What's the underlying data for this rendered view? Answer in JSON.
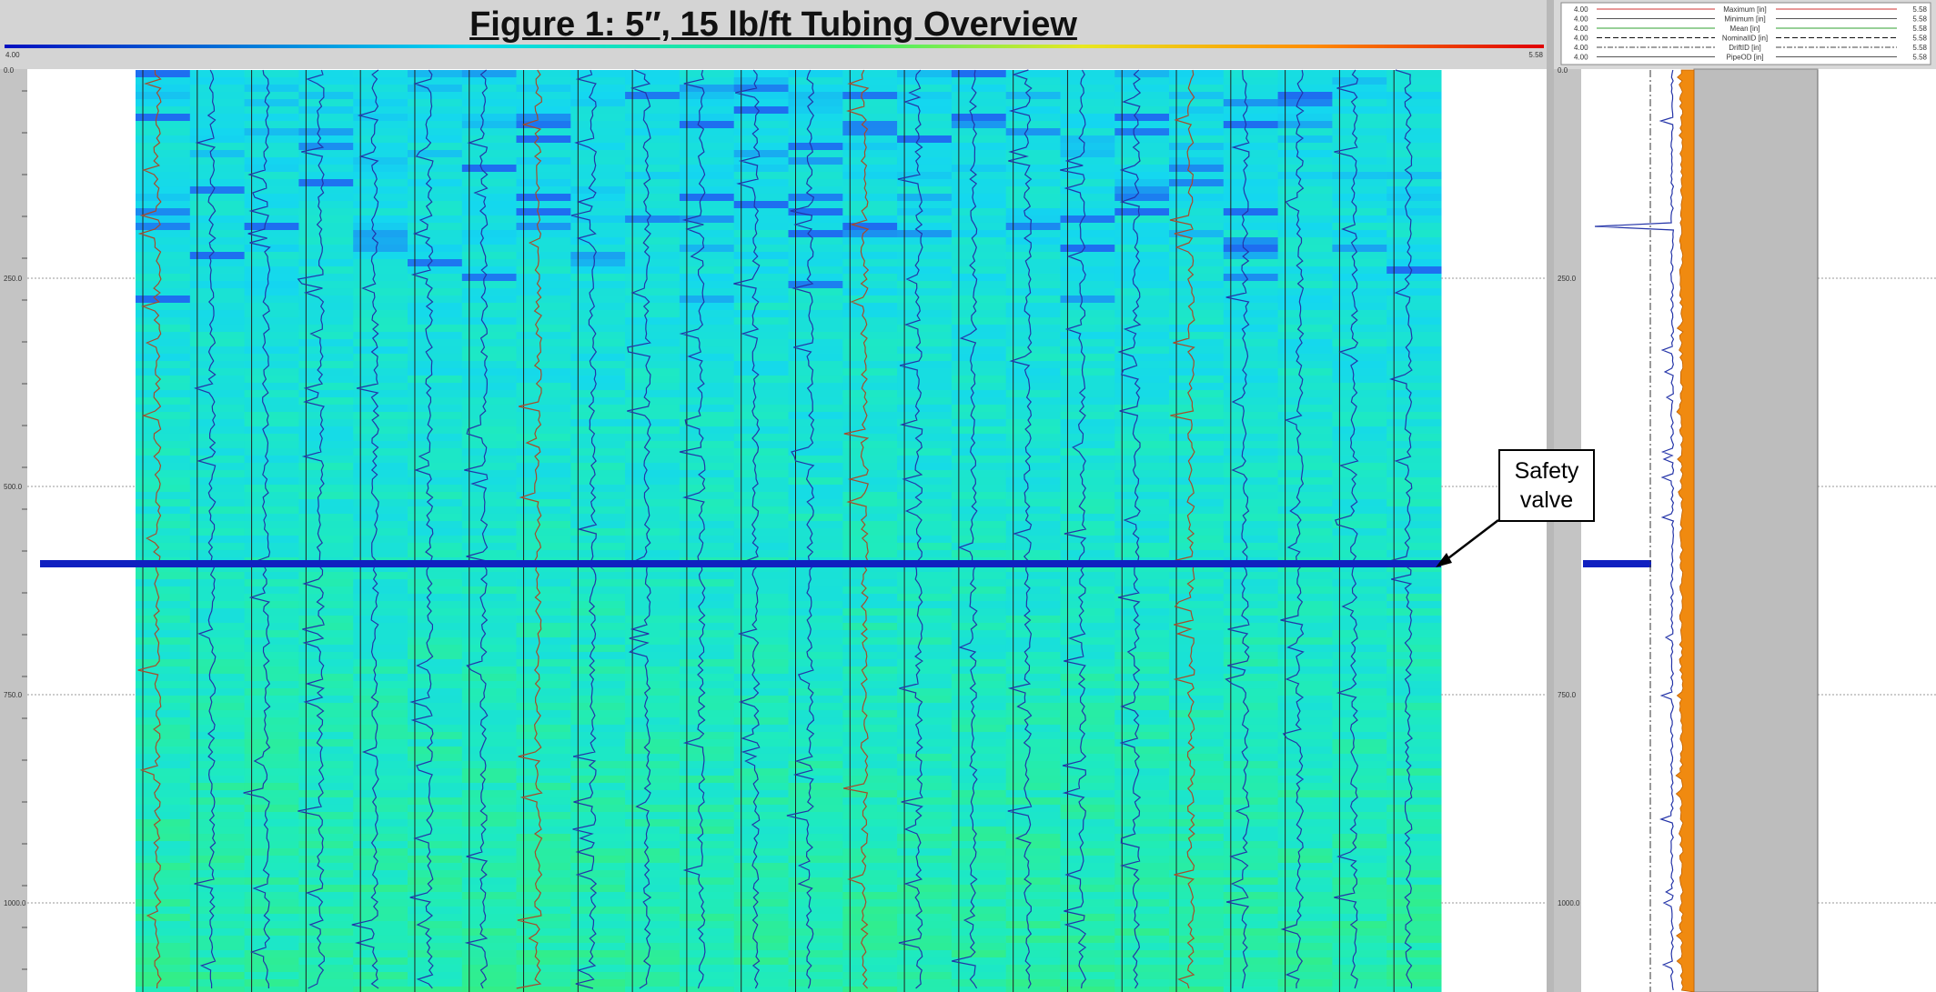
{
  "header": {
    "title": "Figure 1: 5″, 15 lb/ft Tubing Overview",
    "scale_min": "4.00",
    "scale_max": "5.58"
  },
  "depth_labels": [
    "0.0",
    "250.0",
    "500.0",
    "750.0",
    "1000.0"
  ],
  "legend": [
    {
      "min": "4.00",
      "name": "Maximum [in]",
      "max": "5.58"
    },
    {
      "min": "4.00",
      "name": "Minimum [in]",
      "max": "5.58"
    },
    {
      "min": "4.00",
      "name": "Mean [in]",
      "max": "5.58"
    },
    {
      "min": "4.00",
      "name": "NominalID [in]",
      "max": "5.58"
    },
    {
      "min": "4.00",
      "name": "DriftID [in]",
      "max": "5.58"
    },
    {
      "min": "4.00",
      "name": "PipeOD [in]",
      "max": "5.58"
    }
  ],
  "annotation": "Safety valve"
}
